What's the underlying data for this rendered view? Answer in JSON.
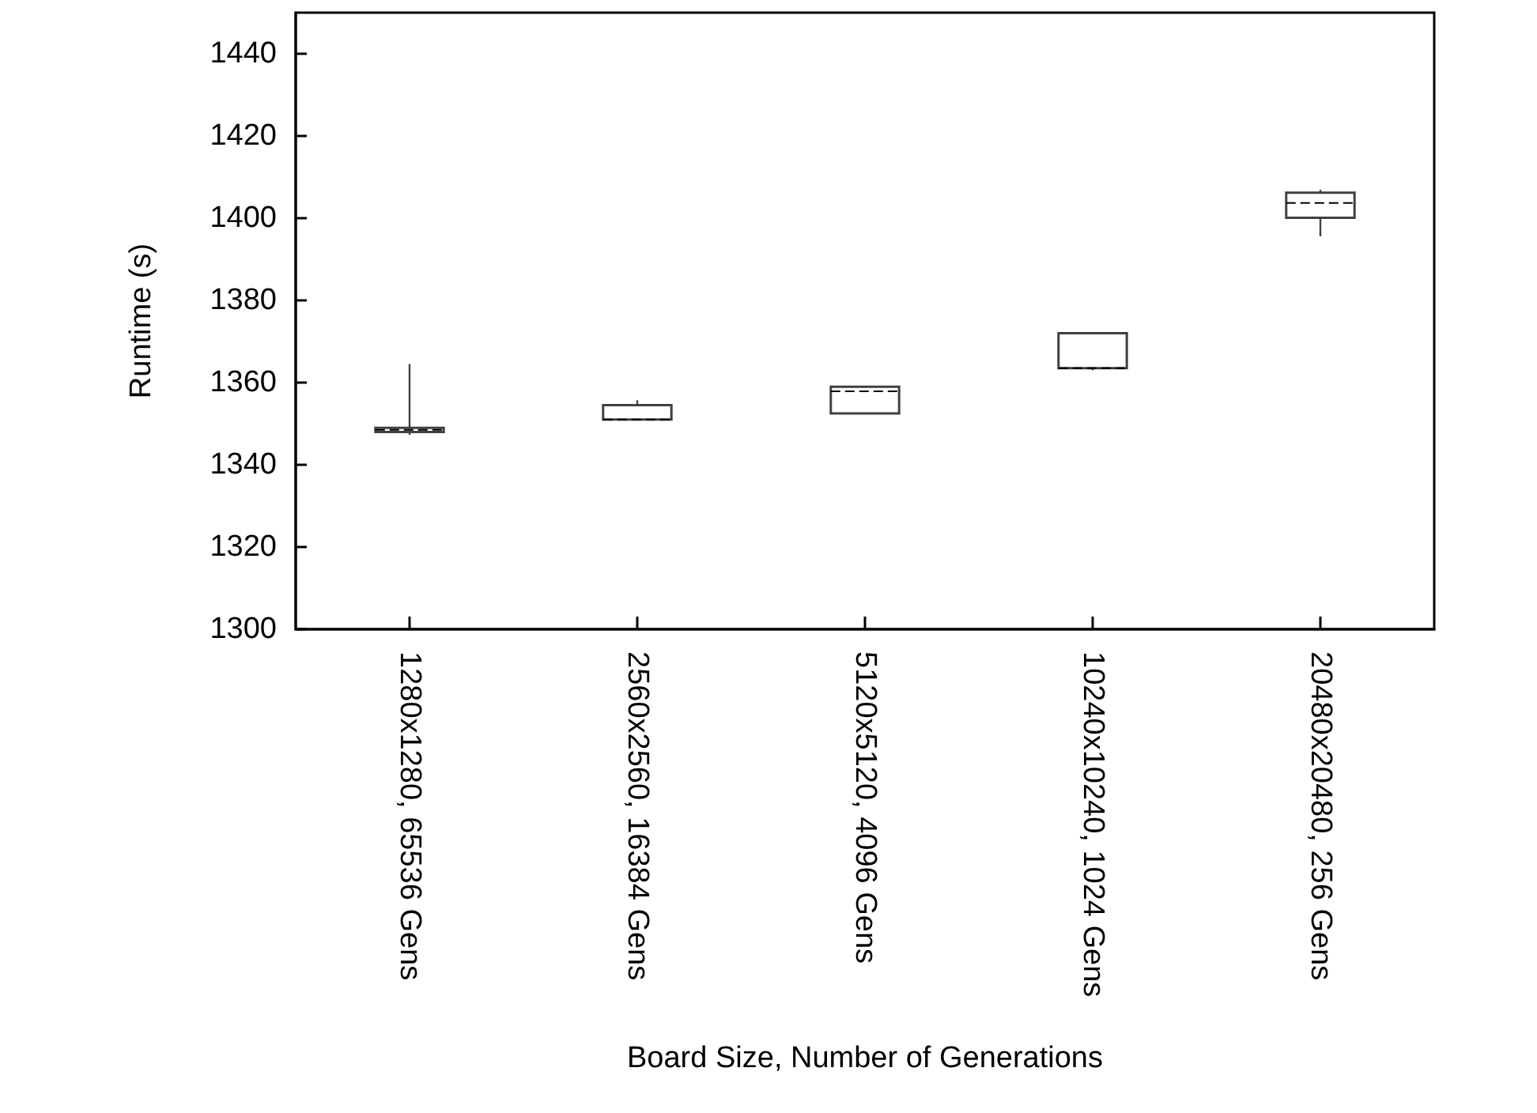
{
  "chart_data": {
    "type": "box",
    "xlabel": "Board Size, Number of Generations",
    "ylabel": "Runtime (s)",
    "categories": [
      "1280x1280, 65536 Gens",
      "2560x2560, 16384 Gens",
      "5120x5120, 4096 Gens",
      "10240x10240, 1024 Gens",
      "20480x20480, 256 Gens"
    ],
    "boxes": [
      {
        "low": 1347.3,
        "q1": 1348,
        "median": 1348.5,
        "q3": 1349,
        "high": 1364.5
      },
      {
        "low": 1351,
        "q1": 1351,
        "median": 1351,
        "q3": 1354.5,
        "high": 1355.7
      },
      {
        "low": 1352.5,
        "q1": 1352.5,
        "median": 1357.9,
        "q3": 1359,
        "high": 1359
      },
      {
        "low": 1363,
        "q1": 1363.5,
        "median": 1363.5,
        "q3": 1372,
        "high": 1372
      },
      {
        "low": 1395.6,
        "q1": 1400.1,
        "median": 1403.7,
        "q3": 1406.2,
        "high": 1406.9
      }
    ],
    "color": "#404040",
    "line_style": "dashed",
    "ylim": [
      1300,
      1450
    ],
    "yticks": [
      1300,
      1320,
      1340,
      1360,
      1380,
      1400,
      1420,
      1440
    ],
    "grid": false
  }
}
